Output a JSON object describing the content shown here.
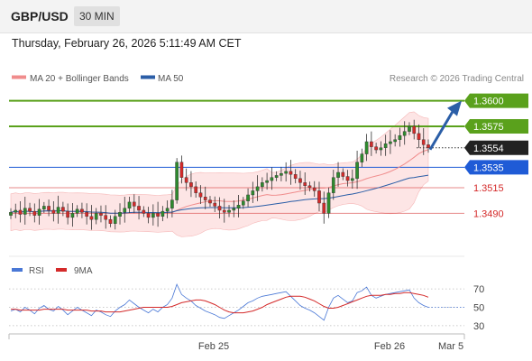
{
  "header": {
    "symbol": "GBP/USD",
    "timeframe": "30 MIN",
    "timestamp": "Thursday, February 26, 2026 5:11:49 AM CET"
  },
  "chart_data": [
    {
      "type": "candlestick",
      "legend": [
        {
          "name": "MA 20 + Bollinger Bands",
          "color": "#f08c8c"
        },
        {
          "name": "MA 50",
          "color": "#2b5ea7"
        }
      ],
      "credit": "Research © 2026 Trading Central",
      "ylim": [
        1.3448,
        1.3612
      ],
      "x_ticks": [
        "Feb 25",
        "Feb 26",
        "Mar 5"
      ],
      "levels": [
        {
          "value": 1.36,
          "label": "1.3600",
          "kind": "resistance"
        },
        {
          "value": 1.3575,
          "label": "1.3575",
          "kind": "resistance"
        },
        {
          "value": 1.3554,
          "label": "1.3554",
          "kind": "last"
        },
        {
          "value": 1.3535,
          "label": "1.3535",
          "kind": "pivot"
        },
        {
          "value": 1.3515,
          "label": "1.3515",
          "kind": "support"
        },
        {
          "value": 1.349,
          "label": "1.3490",
          "kind": "support"
        }
      ],
      "colors": {
        "resistance": "#5aa11c",
        "pivot": "#1f5bd6",
        "support": "#d42a2a",
        "last": "#222222",
        "up": "#2e8b2e",
        "down": "#d42a2a",
        "band": "#fde0e0"
      },
      "close_series": [
        1.3491,
        1.3493,
        1.3489,
        1.3495,
        1.3492,
        1.3488,
        1.3494,
        1.3497,
        1.3493,
        1.349,
        1.3496,
        1.3492,
        1.3486,
        1.349,
        1.3494,
        1.3491,
        1.3487,
        1.3484,
        1.349,
        1.3488,
        1.3484,
        1.348,
        1.3487,
        1.3491,
        1.3495,
        1.3501,
        1.3497,
        1.3493,
        1.349,
        1.3486,
        1.349,
        1.3487,
        1.3492,
        1.3495,
        1.3503,
        1.354,
        1.3525,
        1.352,
        1.3516,
        1.351,
        1.3506,
        1.3503,
        1.35,
        1.3497,
        1.3493,
        1.3491,
        1.3493,
        1.3495,
        1.3498,
        1.3502,
        1.3508,
        1.3512,
        1.3516,
        1.352,
        1.3522,
        1.3525,
        1.3527,
        1.3529,
        1.3531,
        1.3528,
        1.3524,
        1.352,
        1.3517,
        1.3515,
        1.3512,
        1.35,
        1.349,
        1.351,
        1.3525,
        1.353,
        1.3526,
        1.3522,
        1.3524,
        1.354,
        1.3548,
        1.356,
        1.3555,
        1.3552,
        1.3554,
        1.3558,
        1.356,
        1.3562,
        1.3566,
        1.357,
        1.3575,
        1.3568,
        1.3562,
        1.3557,
        1.3554
      ]
    },
    {
      "type": "line",
      "legend": [
        {
          "name": "RSI",
          "color": "#4a78d6"
        },
        {
          "name": "9MA",
          "color": "#d42a2a"
        }
      ],
      "ylim": [
        25,
        78
      ],
      "y_ticks": [
        30,
        50,
        70
      ],
      "rsi": [
        46,
        48,
        45,
        50,
        47,
        43,
        49,
        52,
        48,
        46,
        51,
        47,
        42,
        46,
        50,
        47,
        44,
        41,
        47,
        45,
        42,
        40,
        46,
        50,
        53,
        58,
        54,
        50,
        47,
        44,
        48,
        45,
        50,
        53,
        60,
        75,
        64,
        60,
        57,
        52,
        49,
        46,
        44,
        42,
        39,
        38,
        41,
        44,
        47,
        51,
        55,
        57,
        60,
        62,
        63,
        64,
        65,
        66,
        67,
        62,
        57,
        52,
        49,
        47,
        44,
        40,
        36,
        50,
        60,
        63,
        59,
        55,
        57,
        66,
        68,
        72,
        63,
        60,
        62,
        64,
        65,
        66,
        67,
        68,
        69,
        60,
        55,
        52,
        50
      ],
      "ma9": [
        48,
        48,
        47,
        47,
        47,
        47,
        47,
        48,
        48,
        48,
        48,
        48,
        47,
        47,
        47,
        47,
        47,
        46,
        46,
        46,
        45,
        45,
        45,
        45,
        46,
        47,
        48,
        49,
        50,
        50,
        50,
        50,
        50,
        50,
        51,
        53,
        55,
        56,
        57,
        58,
        58,
        57,
        55,
        53,
        50,
        47,
        45,
        44,
        44,
        44,
        45,
        46,
        48,
        50,
        53,
        55,
        57,
        59,
        61,
        62,
        62,
        62,
        61,
        59,
        57,
        54,
        51,
        49,
        49,
        50,
        52,
        54,
        56,
        58,
        60,
        62,
        63,
        63,
        63,
        64,
        64,
        65,
        65,
        66,
        66,
        65,
        64,
        63,
        61
      ]
    }
  ]
}
